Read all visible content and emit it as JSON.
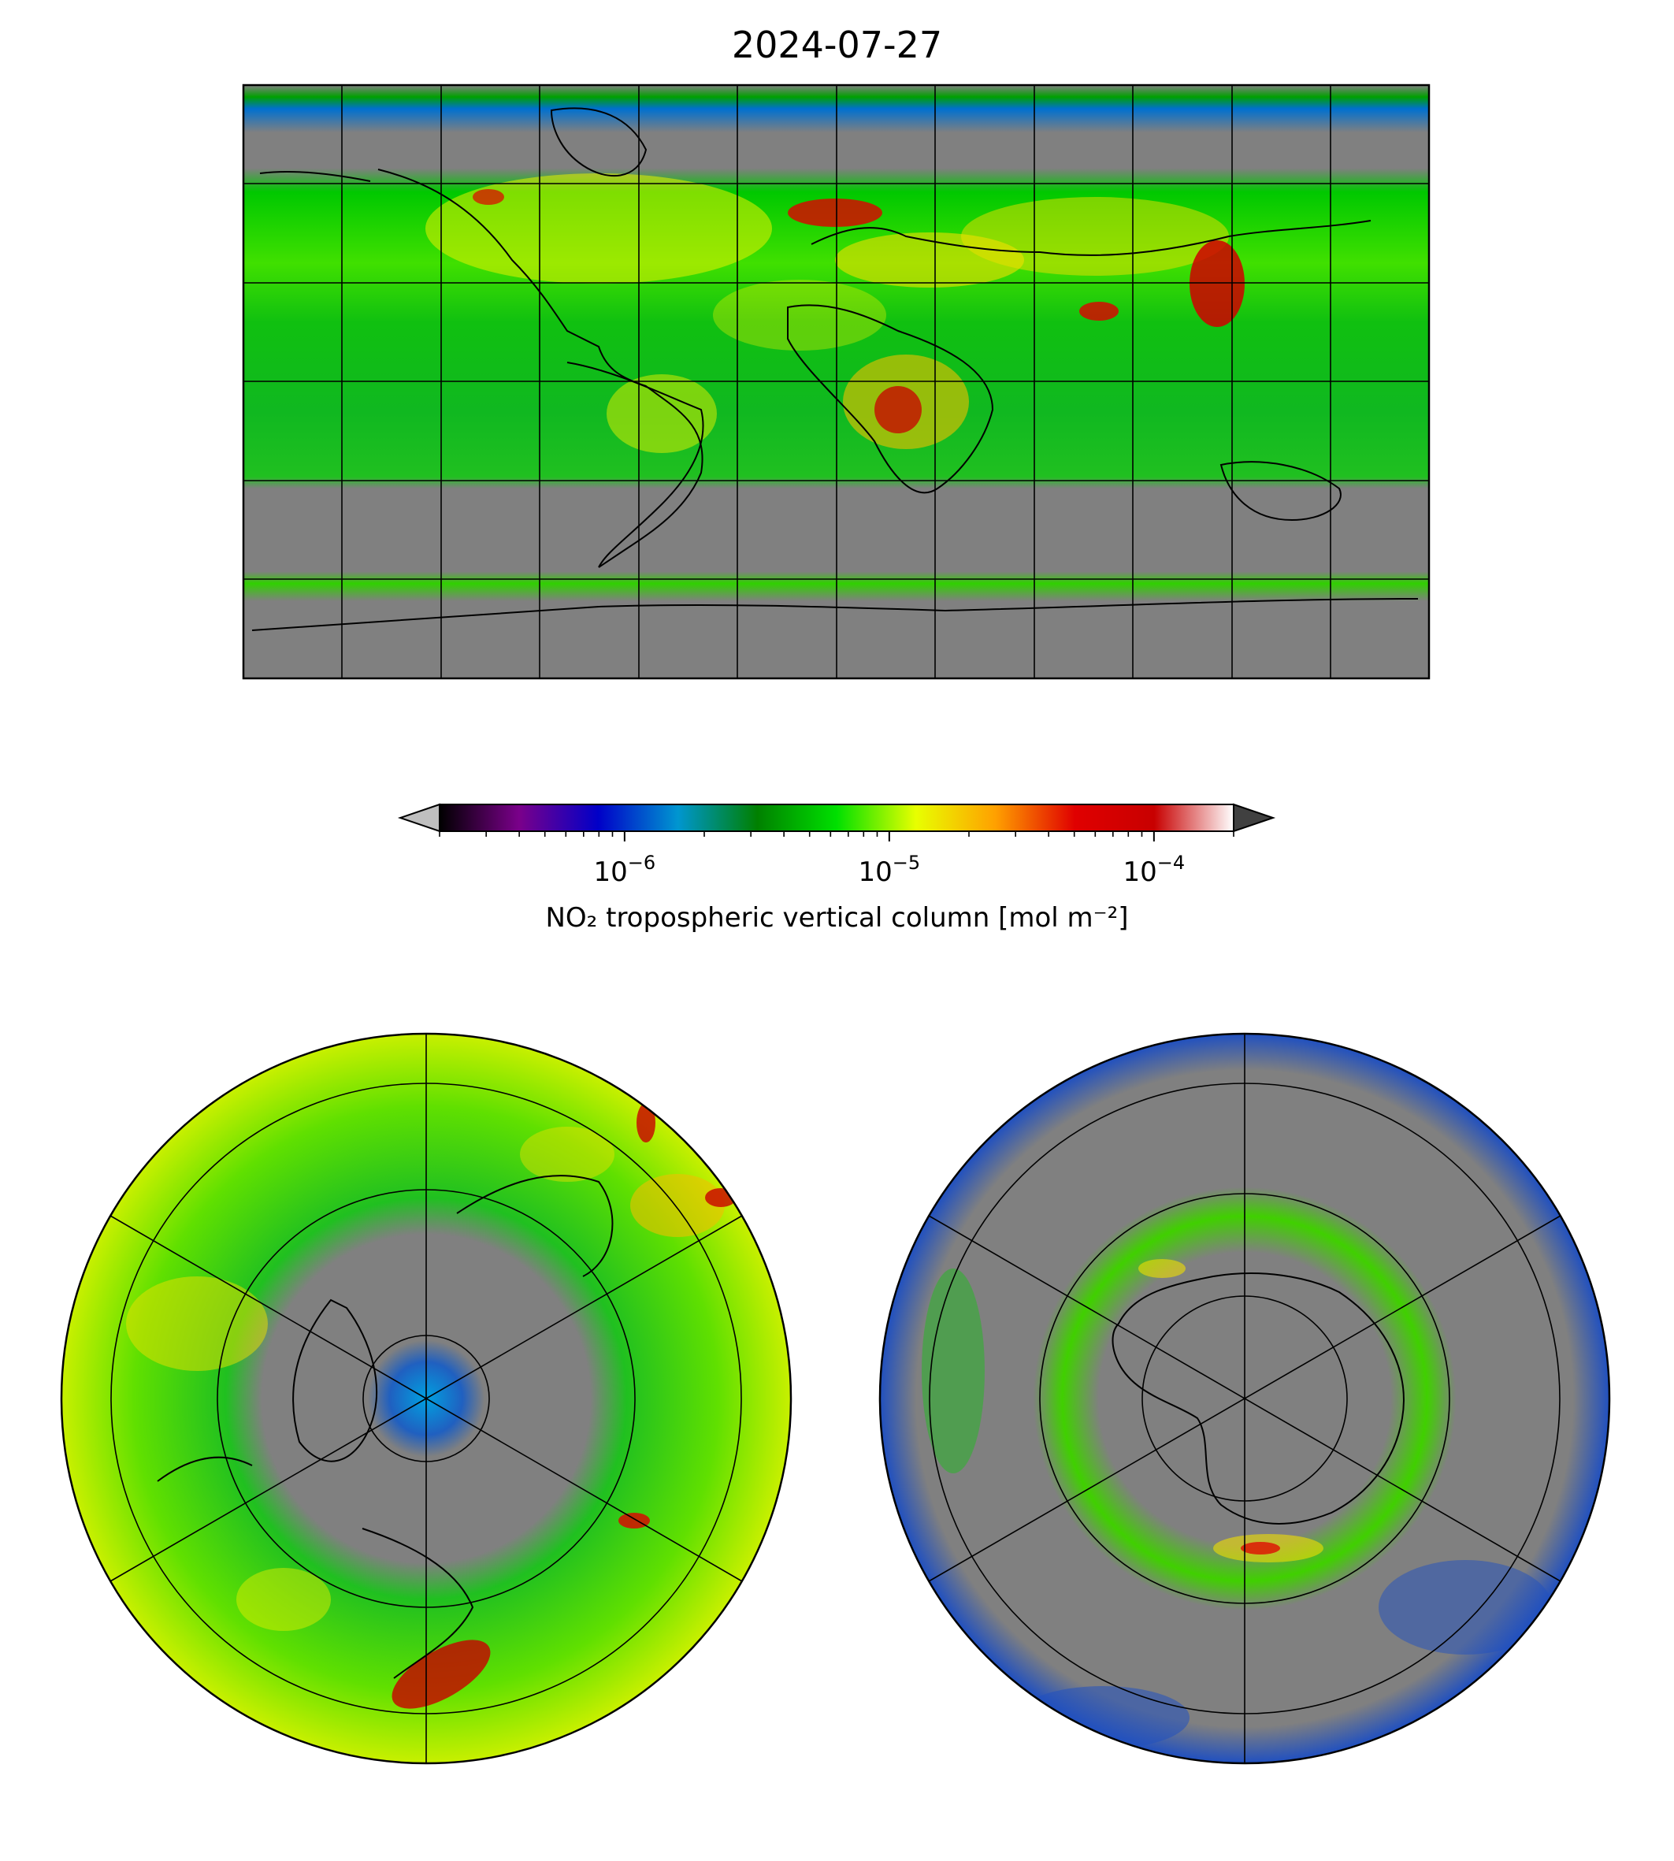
{
  "title": "2024-07-27",
  "colorbar": {
    "label": "NO₂ tropospheric vertical column [mol m⁻²]",
    "scale": "log",
    "vmin": 2e-07,
    "vmax": 0.0002,
    "extend": "both",
    "under_color": "#bfbfbf",
    "over_color": "#404040",
    "colormap_stops": [
      "#000000",
      "#7a008a",
      "#0000c8",
      "#0096d0",
      "#008000",
      "#00e000",
      "#e8ff00",
      "#ffa000",
      "#e00000",
      "#c80000",
      "#ffffff"
    ],
    "ticks": [
      {
        "value": 1e-06,
        "base": "10",
        "exp": "−6"
      },
      {
        "value": 1e-05,
        "base": "10",
        "exp": "−5"
      },
      {
        "value": 0.0001,
        "base": "10",
        "exp": "−4"
      }
    ]
  },
  "maps": {
    "global": {
      "projection": "PlateCarree",
      "ocean_color": "#808080",
      "gridline_color": "#000000"
    },
    "north_polar": {
      "projection": "NorthPolarStereo"
    },
    "south_polar": {
      "projection": "SouthPolarStereo"
    }
  },
  "colors": {
    "no_data": "#808080",
    "low": "#00c800",
    "mid": "#f0f000",
    "high": "#e00000"
  }
}
